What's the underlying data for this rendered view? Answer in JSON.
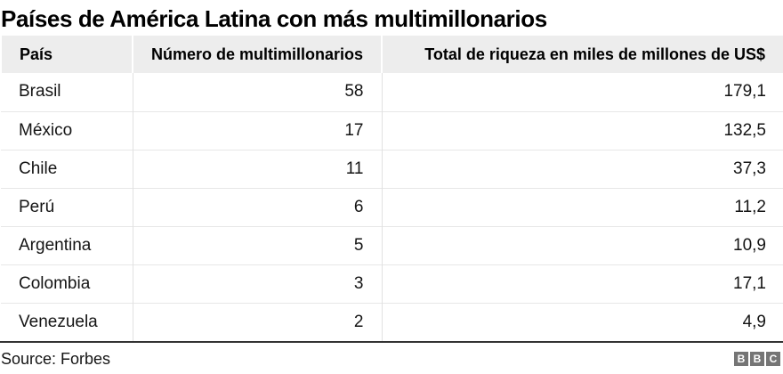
{
  "title": "Países de América Latina con más multimillonarios",
  "table": {
    "headers": {
      "country": "País",
      "count": "Número de multimillonarios",
      "wealth": "Total de riqueza en miles de millones de US$"
    },
    "rows": [
      {
        "country": "Brasil",
        "count": "58",
        "wealth": "179,1"
      },
      {
        "country": "México",
        "count": "17",
        "wealth": "132,5"
      },
      {
        "country": "Chile",
        "count": "11",
        "wealth": "37,3"
      },
      {
        "country": "Perú",
        "count": "6",
        "wealth": "11,2"
      },
      {
        "country": "Argentina",
        "count": "5",
        "wealth": "10,9"
      },
      {
        "country": "Colombia",
        "count": "3",
        "wealth": "17,1"
      },
      {
        "country": "Venezuela",
        "count": "2",
        "wealth": "4,9"
      }
    ]
  },
  "footer": {
    "source": "Source: Forbes",
    "logo": {
      "letters": [
        "B",
        "B",
        "C"
      ]
    }
  },
  "colors": {
    "header_bg": "#ededed",
    "row_border": "#e7e7e7",
    "column_border": "#e1e1e1",
    "footer_rule": "#333333",
    "logo_block": "#757575",
    "text": "#141414"
  },
  "chart_data": {
    "type": "table",
    "title": "Países de América Latina con más multimillonarios",
    "columns": [
      "País",
      "Número de multimillonarios",
      "Total de riqueza en miles de millones de US$"
    ],
    "rows": [
      [
        "Brasil",
        58,
        179.1
      ],
      [
        "México",
        17,
        132.5
      ],
      [
        "Chile",
        11,
        37.3
      ],
      [
        "Perú",
        6,
        11.2
      ],
      [
        "Argentina",
        5,
        10.9
      ],
      [
        "Colombia",
        3,
        17.1
      ],
      [
        "Venezuela",
        2,
        4.9
      ]
    ],
    "source": "Forbes"
  }
}
